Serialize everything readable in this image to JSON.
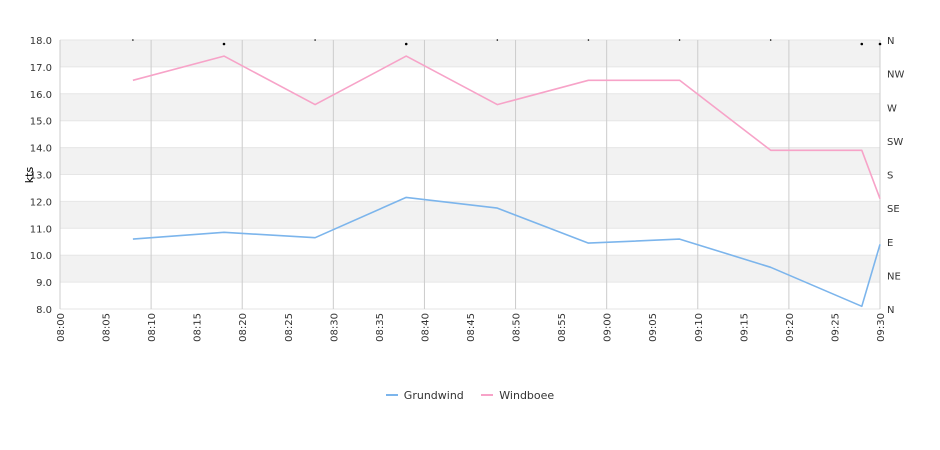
{
  "chart_data": {
    "type": "line",
    "ylabel": "kts",
    "ylim": [
      8.0,
      18.0
    ],
    "y_ticks": [
      "8.0",
      "9.0",
      "10.0",
      "11.0",
      "12.0",
      "13.0",
      "14.0",
      "15.0",
      "16.0",
      "17.0",
      "18.0"
    ],
    "x_range": [
      "08:00",
      "09:30"
    ],
    "x_ticks": [
      "08:00",
      "08:05",
      "08:10",
      "08:15",
      "08:20",
      "08:25",
      "08:30",
      "08:35",
      "08:40",
      "08:45",
      "08:50",
      "08:55",
      "09:00",
      "09:05",
      "09:10",
      "09:15",
      "09:20",
      "09:25",
      "09:30"
    ],
    "right_axis_labels": [
      "N",
      "NE",
      "E",
      "SE",
      "S",
      "SW",
      "W",
      "NW",
      "N"
    ],
    "grid": true,
    "legend_position": "bottom",
    "series": [
      {
        "name": "Grundwind",
        "color": "#7cb5ec",
        "points": [
          {
            "x": "08:08",
            "y": 10.6
          },
          {
            "x": "08:18",
            "y": 10.85
          },
          {
            "x": "08:28",
            "y": 10.65
          },
          {
            "x": "08:38",
            "y": 12.15
          },
          {
            "x": "08:48",
            "y": 11.75
          },
          {
            "x": "08:58",
            "y": 10.45
          },
          {
            "x": "09:08",
            "y": 10.6
          },
          {
            "x": "09:18",
            "y": 9.55
          },
          {
            "x": "09:28",
            "y": 8.1
          },
          {
            "x": "09:30",
            "y": 10.4
          }
        ]
      },
      {
        "name": "Windboee",
        "color": "#f7a3c8",
        "points": [
          {
            "x": "08:08",
            "y": 16.5
          },
          {
            "x": "08:18",
            "y": 17.4
          },
          {
            "x": "08:28",
            "y": 15.6
          },
          {
            "x": "08:38",
            "y": 17.4
          },
          {
            "x": "08:48",
            "y": 15.6
          },
          {
            "x": "08:58",
            "y": 16.5
          },
          {
            "x": "09:08",
            "y": 16.5
          },
          {
            "x": "09:18",
            "y": 13.9
          },
          {
            "x": "09:28",
            "y": 13.9
          },
          {
            "x": "09:30",
            "y": 12.1
          }
        ]
      }
    ]
  }
}
